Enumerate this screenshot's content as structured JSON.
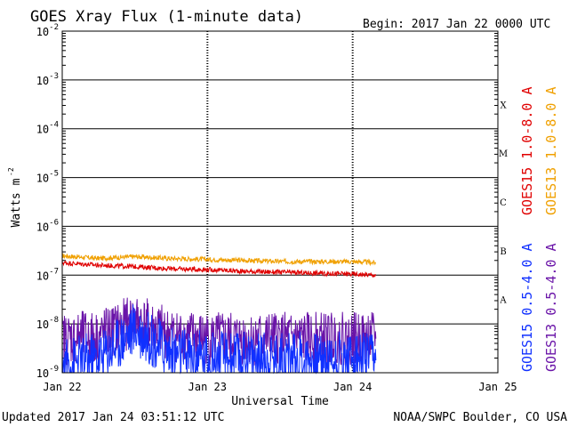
{
  "header": {
    "title": "GOES Xray Flux (1-minute data)",
    "begin": "Begin:  2017 Jan 22 0000 UTC"
  },
  "footer": {
    "updated": "Updated 2017 Jan 24 03:51:12 UTC",
    "source": "NOAA/SWPC Boulder, CO USA"
  },
  "chart_data": {
    "type": "line",
    "title": "GOES Xray Flux (1-minute data)",
    "xlabel": "Universal Time",
    "ylabel": "Watts m",
    "ylabel_sup": "-2",
    "y_scale": "log",
    "ylim": [
      1e-09,
      0.01
    ],
    "x_ticks": [
      "Jan 22",
      "Jan 23",
      "Jan 24",
      "Jan 25"
    ],
    "y_ticks": [
      {
        "base": "10",
        "exp": "-2"
      },
      {
        "base": "10",
        "exp": "-3"
      },
      {
        "base": "10",
        "exp": "-4"
      },
      {
        "base": "10",
        "exp": "-5"
      },
      {
        "base": "10",
        "exp": "-6"
      },
      {
        "base": "10",
        "exp": "-7"
      },
      {
        "base": "10",
        "exp": "-8"
      },
      {
        "base": "10",
        "exp": "-9"
      }
    ],
    "flare_classes": [
      "X",
      "M",
      "C",
      "B",
      "A"
    ],
    "grid": true,
    "colors": {
      "goes15_long": "#e00000",
      "goes13_long": "#f0a000",
      "goes15_short": "#1030ff",
      "goes13_short": "#6a14a8"
    },
    "legend": {
      "goes15_long": "GOES15 1.0-8.0 A",
      "goes13_long": "GOES13 1.0-8.0 A",
      "goes15_short": "GOES15 0.5-4.0 A",
      "goes13_short": "GOES13 0.5-4.0 A"
    },
    "series": [
      {
        "name": "GOES13 1.0-8.0 A",
        "color": "#f0a000",
        "x": [
          "2017-01-22 00:00",
          "2017-01-22 06:00",
          "2017-01-22 12:00",
          "2017-01-22 18:00",
          "2017-01-23 00:00",
          "2017-01-23 06:00",
          "2017-01-23 12:00",
          "2017-01-23 18:00",
          "2017-01-24 00:00",
          "2017-01-24 03:50"
        ],
        "values": [
          2.5e-07,
          2.2e-07,
          2.4e-07,
          2.2e-07,
          2.1e-07,
          2e-07,
          1.9e-07,
          1.9e-07,
          1.9e-07,
          1.8e-07
        ]
      },
      {
        "name": "GOES15 1.0-8.0 A",
        "color": "#e00000",
        "x": [
          "2017-01-22 00:00",
          "2017-01-22 06:00",
          "2017-01-22 12:00",
          "2017-01-22 18:00",
          "2017-01-23 00:00",
          "2017-01-23 06:00",
          "2017-01-23 12:00",
          "2017-01-23 18:00",
          "2017-01-24 00:00",
          "2017-01-24 03:50"
        ],
        "values": [
          1.8e-07,
          1.6e-07,
          1.5e-07,
          1.35e-07,
          1.3e-07,
          1.2e-07,
          1.15e-07,
          1.1e-07,
          1.05e-07,
          1e-07
        ]
      },
      {
        "name": "GOES13 0.5-4.0 A",
        "color": "#6a14a8",
        "x": [
          "2017-01-22 00:00",
          "2017-01-22 06:00",
          "2017-01-22 12:00",
          "2017-01-22 18:00",
          "2017-01-23 00:00",
          "2017-01-23 06:00",
          "2017-01-23 12:00",
          "2017-01-23 18:00",
          "2017-01-24 00:00",
          "2017-01-24 03:50"
        ],
        "values": [
          5e-09,
          5.5e-09,
          1.2e-08,
          6e-09,
          5e-09,
          5e-09,
          5e-09,
          5e-09,
          5e-09,
          5e-09
        ]
      },
      {
        "name": "GOES15 0.5-4.0 A",
        "color": "#1030ff",
        "x": [
          "2017-01-22 00:00",
          "2017-01-22 06:00",
          "2017-01-22 12:00",
          "2017-01-22 18:00",
          "2017-01-23 00:00",
          "2017-01-23 06:00",
          "2017-01-23 12:00",
          "2017-01-23 18:00",
          "2017-01-24 00:00",
          "2017-01-24 03:50"
        ],
        "values": [
          1.5e-09,
          2e-09,
          8e-09,
          2.5e-09,
          2e-09,
          2e-09,
          2e-09,
          2e-09,
          2e-09,
          1.8e-09
        ]
      }
    ]
  }
}
